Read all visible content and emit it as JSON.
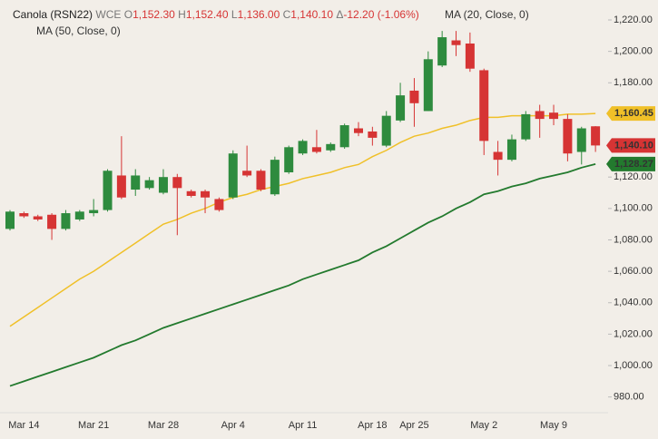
{
  "chart_data": {
    "type": "candlestick",
    "ohlc_legend": {
      "symbol": "Canola (RSN22)",
      "exchange": "WCE",
      "fields": [
        {
          "key": "O",
          "value": "1,152.30"
        },
        {
          "key": "H",
          "value": "1,152.40"
        },
        {
          "key": "L",
          "value": "1,136.00"
        },
        {
          "key": "C",
          "value": "1,140.10"
        },
        {
          "key": "Δ",
          "value": "-12.20 (-1.06%)"
        }
      ]
    },
    "categories": [
      null,
      "Mar 14",
      null,
      null,
      null,
      null,
      "Mar 21",
      null,
      null,
      null,
      null,
      "Mar 28",
      null,
      null,
      null,
      null,
      "Apr 4",
      null,
      null,
      null,
      null,
      "Apr 11",
      null,
      null,
      null,
      null,
      "Apr 18",
      null,
      null,
      "Apr 25",
      null,
      null,
      null,
      null,
      "May 2",
      null,
      null,
      null,
      null,
      "May 9",
      null,
      null,
      null
    ],
    "candles": {
      "up_color": "#2e8b3e",
      "down_color": "#d63434",
      "open": [
        1087,
        1097,
        1095,
        1096,
        1087,
        1093,
        1097,
        1099,
        1121,
        1112,
        1113,
        1110,
        1120,
        1111,
        1111,
        1106,
        1107,
        1124,
        1124,
        1109,
        1123,
        1135,
        1139,
        1137,
        1139,
        1151,
        1149,
        1140,
        1156,
        1175,
        1162,
        1191,
        1207,
        1205,
        1188,
        1136,
        1131,
        1144,
        1162,
        1161,
        1157,
        1136,
        1152.3
      ],
      "high": [
        1099,
        1098,
        1096,
        1097,
        1099,
        1099,
        1106,
        1125,
        1146,
        1125,
        1120,
        1125,
        1122,
        1112,
        1112,
        1107,
        1137,
        1140,
        1125,
        1133,
        1140,
        1144,
        1150,
        1142,
        1154,
        1155,
        1152,
        1162,
        1180,
        1183,
        1200,
        1213,
        1213,
        1212,
        1189,
        1143,
        1147,
        1162,
        1166,
        1166,
        1160,
        1152,
        1152.4
      ],
      "low": [
        1086,
        1094,
        1092,
        1080,
        1086,
        1092,
        1095,
        1098,
        1106,
        1108,
        1112,
        1109,
        1083,
        1107,
        1097,
        1098,
        1106,
        1120,
        1111,
        1108,
        1122,
        1134,
        1135,
        1136,
        1138,
        1146,
        1140,
        1139,
        1155,
        1152,
        1162,
        1190,
        1197,
        1187,
        1134,
        1121,
        1130,
        1143,
        1145,
        1153,
        1130,
        1128,
        1136
      ],
      "close": [
        1098,
        1095,
        1093,
        1087,
        1097,
        1098,
        1099,
        1124,
        1107,
        1121,
        1118,
        1120,
        1113,
        1108,
        1107,
        1099,
        1135,
        1121,
        1112,
        1131,
        1139,
        1143,
        1136,
        1141,
        1153,
        1148,
        1145,
        1159,
        1172,
        1167,
        1195,
        1209,
        1204,
        1189,
        1143,
        1131,
        1144,
        1160,
        1157,
        1157,
        1135,
        1151,
        1140.1
      ],
      "close_labels": [
        null,
        null,
        null,
        null,
        null,
        null,
        null,
        null,
        null,
        null,
        null,
        null,
        null,
        null,
        null,
        null,
        null,
        null,
        null,
        null,
        null,
        null,
        null,
        null,
        null,
        null,
        null,
        null,
        null,
        null,
        null,
        null,
        null,
        null,
        null,
        null,
        null,
        null,
        null,
        null,
        null,
        null,
        "1,140.10"
      ]
    },
    "series": [
      {
        "name": "MA (20, Close, 0)",
        "color": "#f0c028",
        "values": [
          1025,
          1031,
          1037,
          1043,
          1049,
          1055,
          1060,
          1066,
          1072,
          1078,
          1084,
          1090,
          1093,
          1097,
          1100,
          1104,
          1107,
          1109,
          1112,
          1114,
          1116,
          1119,
          1121,
          1123,
          1126,
          1128,
          1133,
          1137,
          1142,
          1146,
          1148,
          1151,
          1153,
          1156,
          1158,
          1158,
          1159,
          1159,
          1159,
          1159,
          1160,
          1160,
          1160.45
        ],
        "value_labels": [
          null,
          null,
          null,
          null,
          null,
          null,
          null,
          null,
          null,
          null,
          null,
          null,
          null,
          null,
          null,
          null,
          null,
          null,
          null,
          null,
          null,
          null,
          null,
          null,
          null,
          null,
          null,
          null,
          null,
          null,
          null,
          null,
          null,
          null,
          null,
          null,
          null,
          null,
          null,
          null,
          null,
          null,
          "1,160.45"
        ]
      },
      {
        "name": "MA (50, Close, 0)",
        "color": "#237a2e",
        "values": [
          987,
          990,
          993,
          996,
          999,
          1002,
          1005,
          1009,
          1013,
          1016,
          1020,
          1024,
          1027,
          1030,
          1033,
          1036,
          1039,
          1042,
          1045,
          1048,
          1051,
          1055,
          1058,
          1061,
          1064,
          1067,
          1072,
          1076,
          1081,
          1086,
          1091,
          1095,
          1100,
          1104,
          1109,
          1111,
          1114,
          1116,
          1119,
          1121,
          1123,
          1126,
          1128.27
        ],
        "value_labels": [
          null,
          null,
          null,
          null,
          null,
          null,
          null,
          null,
          null,
          null,
          null,
          null,
          null,
          null,
          null,
          null,
          null,
          null,
          null,
          null,
          null,
          null,
          null,
          null,
          null,
          null,
          null,
          null,
          null,
          null,
          null,
          null,
          null,
          null,
          null,
          null,
          null,
          null,
          null,
          null,
          null,
          null,
          "1,128.27"
        ]
      }
    ],
    "ylim": [
      970,
      1232.7
    ],
    "yticks": [
      {
        "value": 980,
        "label": "980.00"
      },
      {
        "value": 1000,
        "label": "1,000.00"
      },
      {
        "value": 1020,
        "label": "1,020.00"
      },
      {
        "value": 1040,
        "label": "1,040.00"
      },
      {
        "value": 1060,
        "label": "1,060.00"
      },
      {
        "value": 1080,
        "label": "1,080.00"
      },
      {
        "value": 1100,
        "label": "1,100.00"
      },
      {
        "value": 1120,
        "label": "1,120.00"
      },
      {
        "value": 1140,
        "label": "1,140.00"
      },
      {
        "value": 1160,
        "label": "1,160.00"
      },
      {
        "value": 1180,
        "label": "1,180.00"
      },
      {
        "value": 1200,
        "label": "1,200.00"
      },
      {
        "value": 1220,
        "label": "1,220.00"
      }
    ]
  }
}
